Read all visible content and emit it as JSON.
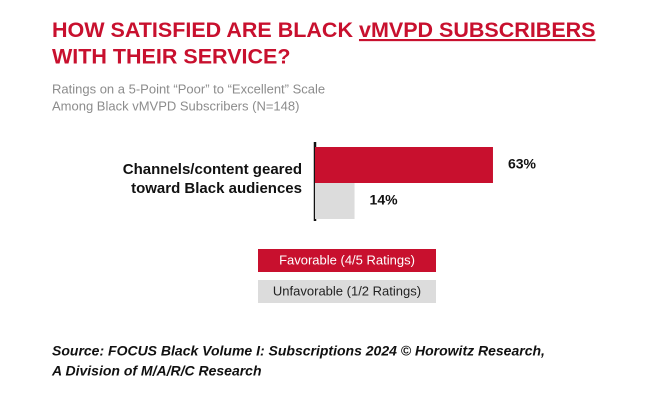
{
  "chart_data": {
    "type": "bar",
    "orientation": "horizontal",
    "title": [
      "HOW SATISFIED ARE BLACK",
      "vMVPD SUBSCRIBERS",
      "WITH THEIR SERVICE?"
    ],
    "subtitle": [
      "Ratings on a 5-Point “Poor” to “Excellent” Scale",
      "Among Black vMVPD Subscribers (N=148)"
    ],
    "categories": [
      "Channels/content geared toward Black audiences"
    ],
    "series": [
      {
        "name": "Favorable (4/5 Ratings)",
        "color": "#c8102e",
        "values": [
          63
        ],
        "value_labels": [
          "63%"
        ]
      },
      {
        "name": "Unfavorable (1/2 Ratings)",
        "color": "#dcdcdc",
        "values": [
          14
        ],
        "value_labels": [
          "14%"
        ]
      }
    ],
    "xlim": [
      0,
      100
    ],
    "source": [
      "Source: FOCUS Black Volume I: Subscriptions 2024 © Horowitz Research,",
      "A Division of M/A/R/C Research"
    ]
  }
}
